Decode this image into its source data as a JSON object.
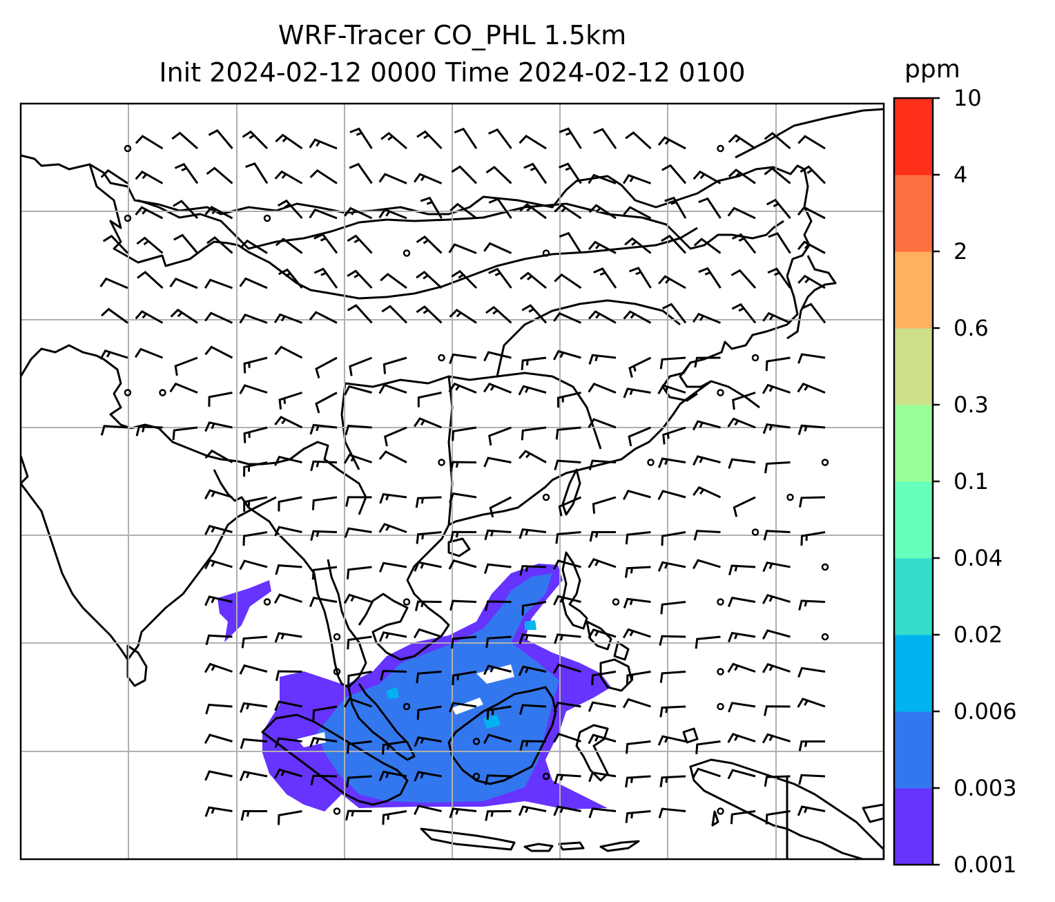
{
  "title_line1": "WRF-Tracer CO_PHL 1.5km",
  "title_line2": "Init 2024-02-12 0000 Time 2024-02-12 0100",
  "colorbar": {
    "unit": "ppm",
    "levels": [
      "0.001",
      "0.003",
      "0.006",
      "0.02",
      "0.04",
      "0.1",
      "0.3",
      "0.6",
      "2",
      "4",
      "10"
    ],
    "colors": [
      "#6633ff",
      "#3377ee",
      "#00b3ee",
      "#33ddcc",
      "#66ffbb",
      "#99ff99",
      "#cce088",
      "#ffb060",
      "#ff7040",
      "#ff3019"
    ]
  },
  "colors": {
    "gridline": "#b0b0b0",
    "coastline": "#000000",
    "barb": "#000000",
    "tracer_low": "#6633ff",
    "tracer_mid": "#3377ee",
    "tracer_high": "#00b3ee"
  },
  "map": {
    "features": [
      "coastlines",
      "country-borders",
      "lat-lon-gridlines",
      "wind-barbs",
      "tracer-concentration-fill"
    ]
  }
}
